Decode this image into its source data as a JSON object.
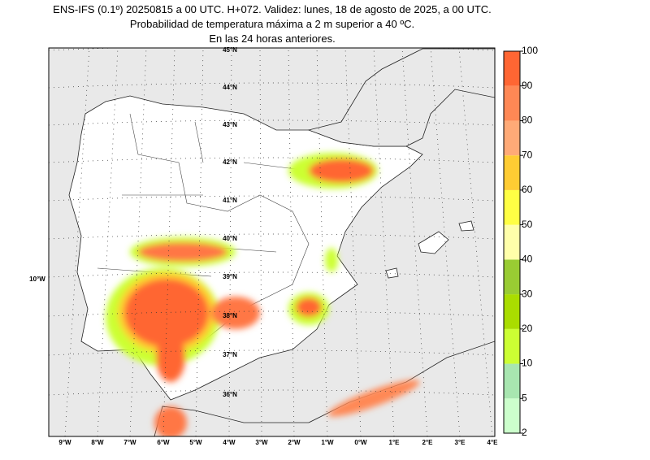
{
  "title": [
    "ENS-IFS (0.1º) 20250815 a 00 UTC. H+072. Validez: lunes, 18 de agosto de 2025, a 00 UTC.",
    "Probabilidad de temperatura máxima a 2 m superior a 40 ºC.",
    "En las 24 horas anteriores."
  ],
  "latitude_labels": [
    "45°N",
    "44°N",
    "43°N",
    "42°N",
    "41°N",
    "40°N",
    "39°N",
    "38°N",
    "37°N",
    "36°N"
  ],
  "west_label": "10°W",
  "longitude_labels": [
    "9°W",
    "8°W",
    "7°W",
    "6°W",
    "5°W",
    "4°W",
    "3°W",
    "2°W",
    "1°W",
    "0°W",
    "1°E",
    "2°E",
    "3°E",
    "4°E"
  ],
  "colorbar": {
    "levels": [
      2,
      5,
      10,
      20,
      30,
      40,
      50,
      60,
      70,
      80,
      90,
      100
    ],
    "colors": [
      "#ccffcc",
      "#a8e6b0",
      "#ccff33",
      "#aadd00",
      "#99cc33",
      "#ffffaa",
      "#ffff44",
      "#ffcc33",
      "#ffaa77",
      "#ff8855",
      "#ff6633"
    ]
  }
}
